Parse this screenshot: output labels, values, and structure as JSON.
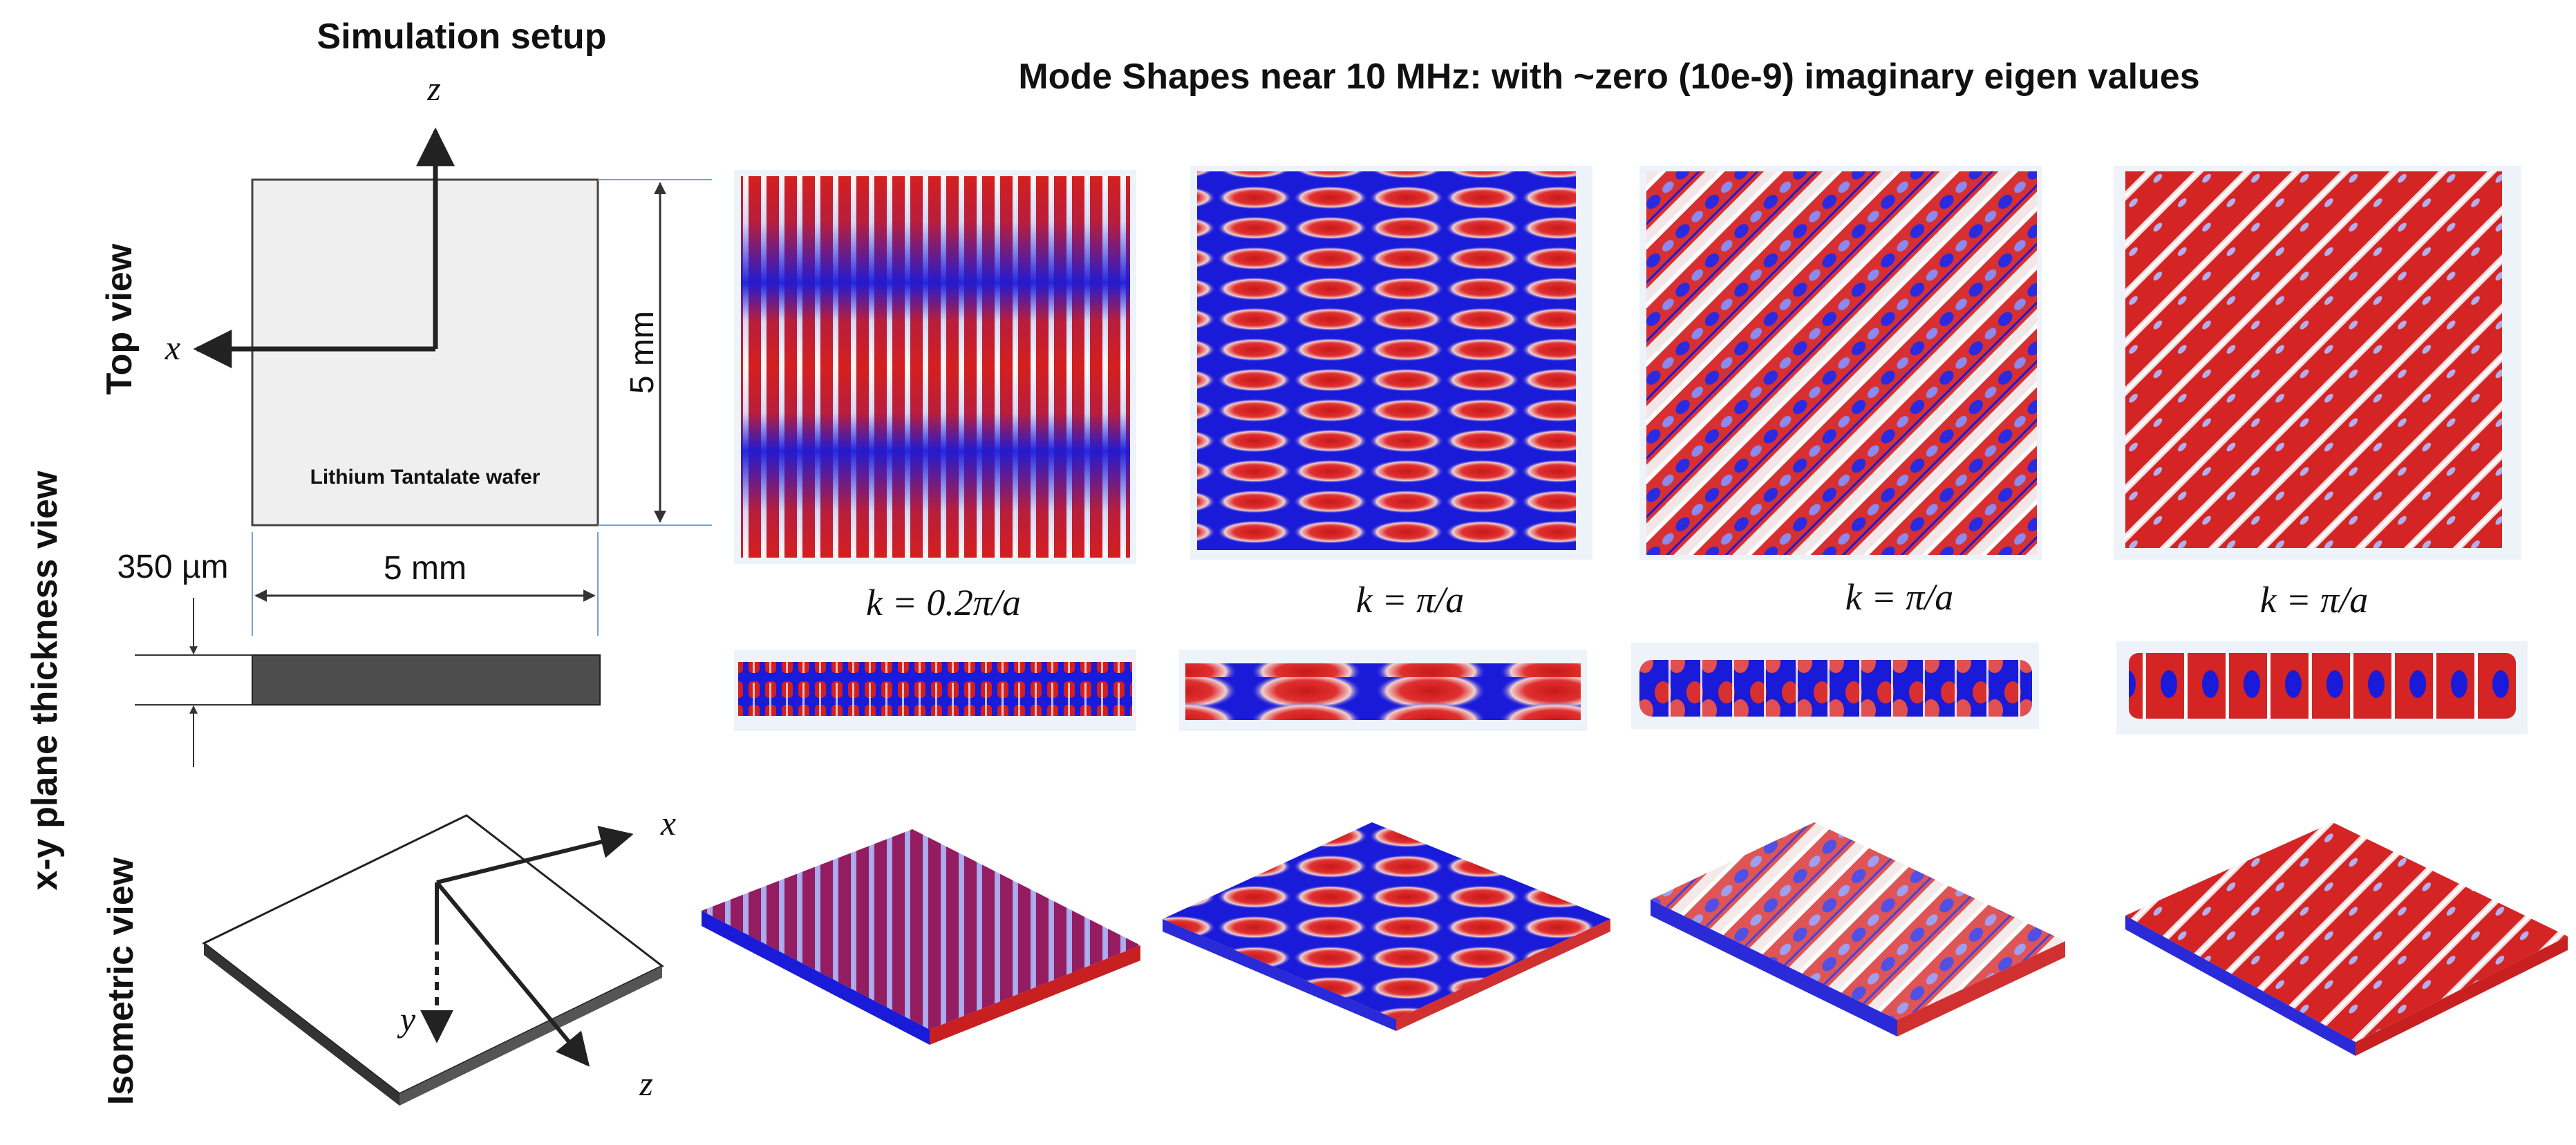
{
  "setup_title": "Simulation setup",
  "main_title": "Mode Shapes near 10 MHz: with ~zero (10e-9) imaginary eigen values",
  "row_labels": {
    "top_view": "Top view",
    "thickness_view": "x-y plane thickness view",
    "isometric_view": "Isometric view"
  },
  "setup": {
    "axis_z": "z",
    "axis_x": "x",
    "axis_y": "y",
    "wafer_label": "Lithium Tantalate wafer",
    "height_dim": "5 mm",
    "width_dim": "5 mm",
    "thickness_dim": "350 µm"
  },
  "modes": [
    {
      "k_label": "k = 0.2π/a"
    },
    {
      "k_label": "k = π/a"
    },
    {
      "k_label": "k = π/a"
    },
    {
      "k_label": "k = π/a"
    }
  ],
  "colors": {
    "mode_red": "#d41f1f",
    "mode_blue": "#1a1ad9",
    "mode_white": "#f2f2f2",
    "wafer_fill": "#efefef",
    "wafer_edge": "#555555",
    "dim_line": "#7aa0d6"
  }
}
